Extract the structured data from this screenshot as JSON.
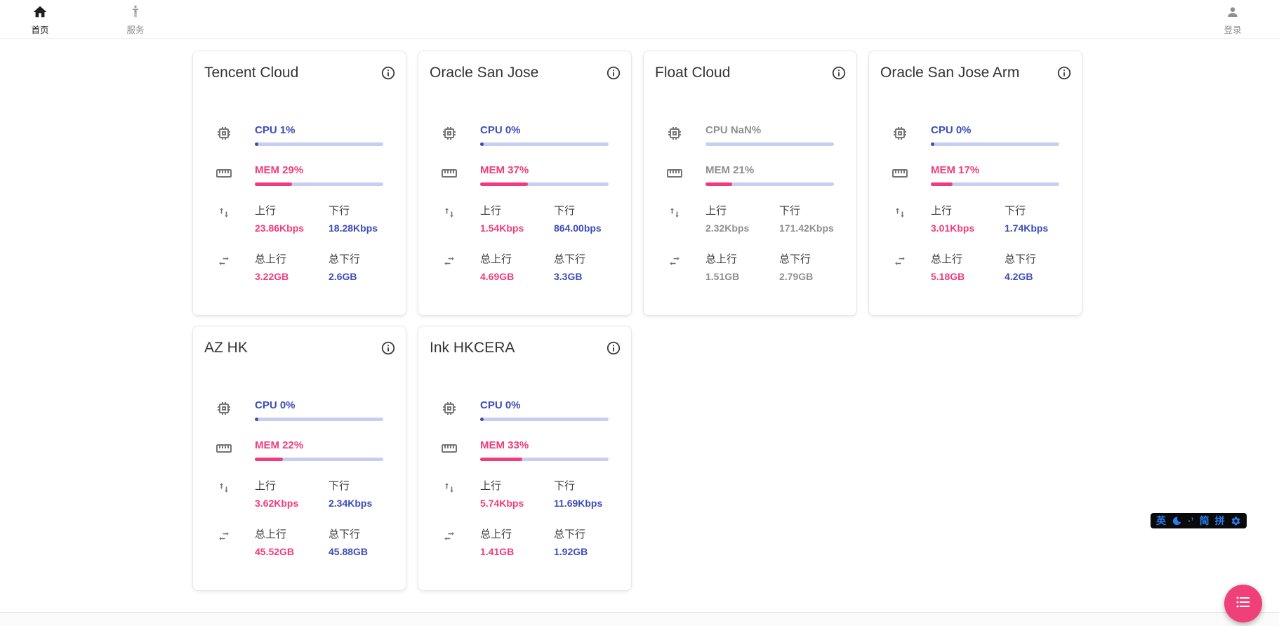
{
  "navbar": {
    "home": {
      "label": "首页"
    },
    "services": {
      "label": "服务"
    },
    "login": {
      "label": "登录"
    }
  },
  "labels": {
    "upload": "上行",
    "download": "下行",
    "total_upload": "总上行",
    "total_download": "总下行"
  },
  "colors": {
    "accent_blue": "#3c4db9",
    "accent_pink": "#f03c7c",
    "bar_track": "#c9cef0",
    "offline_gray": "#8f8f8f",
    "fab_pink": "#f0407a",
    "ime_blue": "#2b7cf0"
  },
  "servers": [
    {
      "name": "Tencent Cloud",
      "cpu_text": "CPU 1%",
      "cpu_pct": 1,
      "mem_text": "MEM 29%",
      "mem_pct": 29,
      "upload": "23.86Kbps",
      "download": "18.28Kbps",
      "total_upload": "3.22GB",
      "total_download": "2.6GB",
      "online": true
    },
    {
      "name": "Oracle San Jose",
      "cpu_text": "CPU 0%",
      "cpu_pct": 0,
      "mem_text": "MEM 37%",
      "mem_pct": 37,
      "upload": "1.54Kbps",
      "download": "864.00bps",
      "total_upload": "4.69GB",
      "total_download": "3.3GB",
      "online": true
    },
    {
      "name": "Float Cloud",
      "cpu_text": "CPU NaN%",
      "cpu_pct": 0,
      "mem_text": "MEM 21%",
      "mem_pct": 21,
      "upload": "2.32Kbps",
      "download": "171.42Kbps",
      "total_upload": "1.51GB",
      "total_download": "2.79GB",
      "online": false
    },
    {
      "name": "Oracle San Jose Arm",
      "cpu_text": "CPU 0%",
      "cpu_pct": 0,
      "mem_text": "MEM 17%",
      "mem_pct": 17,
      "upload": "3.01Kbps",
      "download": "1.74Kbps",
      "total_upload": "5.18GB",
      "total_download": "4.2GB",
      "online": true
    },
    {
      "name": "AZ HK",
      "cpu_text": "CPU 0%",
      "cpu_pct": 0,
      "mem_text": "MEM 22%",
      "mem_pct": 22,
      "upload": "3.62Kbps",
      "download": "2.34Kbps",
      "total_upload": "45.52GB",
      "total_download": "45.88GB",
      "online": true
    },
    {
      "name": "Ink HKCERA",
      "cpu_text": "CPU 0%",
      "cpu_pct": 0,
      "mem_text": "MEM 33%",
      "mem_pct": 33,
      "upload": "5.74Kbps",
      "download": "11.69Kbps",
      "total_upload": "1.41GB",
      "total_download": "1.92GB",
      "online": true
    }
  ],
  "ime_toolbar": {
    "english": "英",
    "punctuation": "·’",
    "simplified": "简",
    "pinyin": "拼",
    "icons": [
      "moon-icon",
      "gear-icon"
    ]
  },
  "fab": {
    "icon": "list-icon"
  }
}
